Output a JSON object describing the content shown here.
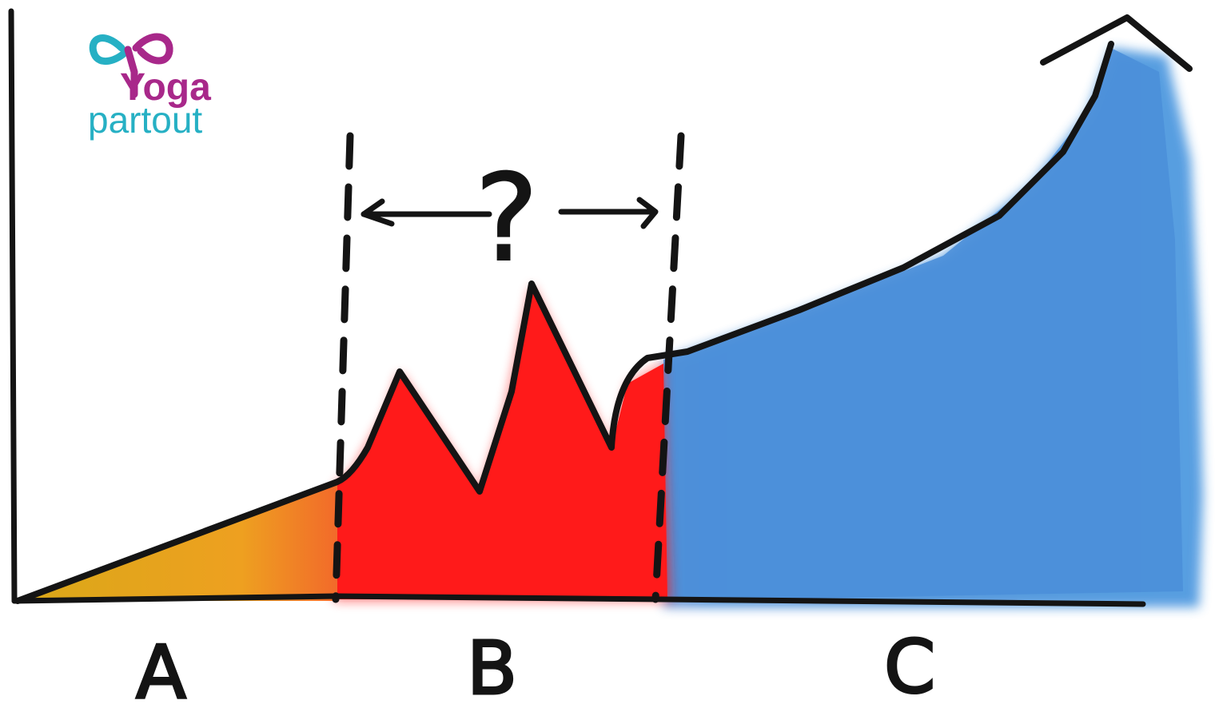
{
  "logo": {
    "line1": "Yoga",
    "line2": "partout",
    "color_primary": "#a8288a",
    "color_secondary": "#26b0c4"
  },
  "diagram": {
    "zones": [
      {
        "label": "A",
        "color": "#e8a020"
      },
      {
        "label": "B",
        "color": "#ff1a1a"
      },
      {
        "label": "C",
        "color": "#4a90d8"
      }
    ],
    "question_mark": "?",
    "line_color": "#141414"
  }
}
